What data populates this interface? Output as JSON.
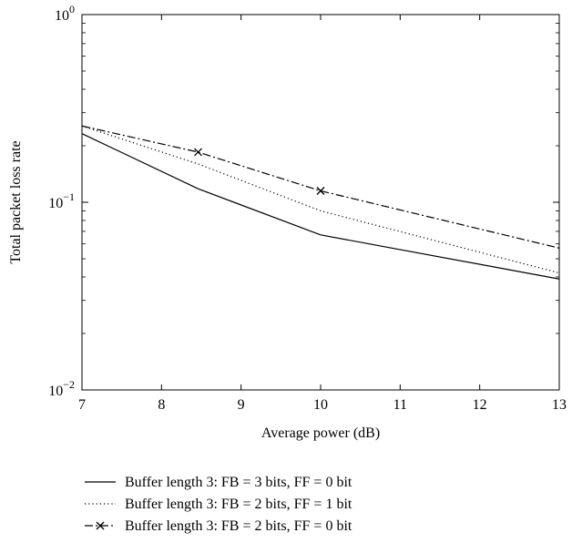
{
  "chart_data": {
    "type": "line",
    "title": "",
    "xlabel": "Average power (dB)",
    "ylabel": "Total packet loss rate",
    "xlim": [
      7,
      13
    ],
    "ylim": [
      0.01,
      1
    ],
    "yscale": "log",
    "grid": false,
    "legend_position": "below",
    "x_ticks": [
      7,
      8,
      9,
      10,
      11,
      12,
      13
    ],
    "x_tick_labels": [
      "7",
      "8",
      "9",
      "10",
      "11",
      "12",
      "13"
    ],
    "y_ticks": [
      {
        "value": 1,
        "base": "10",
        "exp": "0"
      },
      {
        "value": 0.1,
        "base": "10",
        "exp": "−1"
      },
      {
        "value": 0.01,
        "base": "10",
        "exp": "−2"
      }
    ],
    "series": [
      {
        "name": "Buffer length 3: FB = 3 bits, FF = 0 bit",
        "style": "solid",
        "marker": "none",
        "x": [
          7,
          8.46,
          10,
          13
        ],
        "y": [
          0.232,
          0.118,
          0.067,
          0.039
        ]
      },
      {
        "name": "Buffer length 3: FB = 2 bits, FF = 1 bit",
        "style": "dotted",
        "marker": "none",
        "x": [
          7,
          8.46,
          10,
          13
        ],
        "y": [
          0.255,
          0.16,
          0.09,
          0.042
        ]
      },
      {
        "name": "Buffer length 3: FB = 2 bits, FF = 0 bit",
        "style": "dashdot",
        "marker": "x",
        "x": [
          7,
          8.46,
          10,
          13
        ],
        "y": [
          0.255,
          0.185,
          0.115,
          0.057
        ],
        "marker_x": [
          8.46,
          10
        ]
      }
    ]
  },
  "colors": {
    "line": "#000000",
    "background": "#ffffff"
  }
}
